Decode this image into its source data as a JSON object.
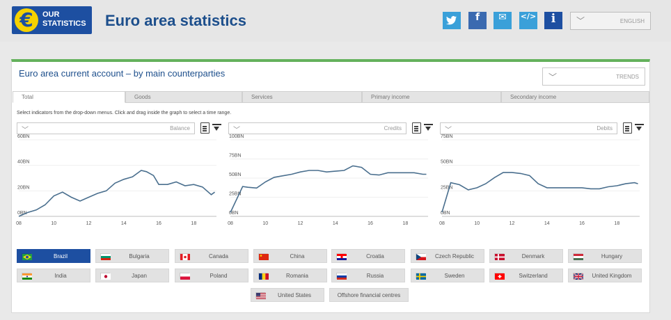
{
  "header": {
    "logo_symbol": "€",
    "logo_line1": "OUR",
    "logo_line2": "STATISTICS",
    "title": "Euro area statistics",
    "social": [
      {
        "icon": "twitter-icon",
        "glyph": "t",
        "color": "#3aa0d9"
      },
      {
        "icon": "facebook-icon",
        "glyph": "f",
        "color": "#3b6ab0"
      },
      {
        "icon": "email-icon",
        "glyph": "✉",
        "color": "#3aa0d9"
      },
      {
        "icon": "embed-code-icon",
        "glyph": "</>",
        "color": "#3aa0d9"
      },
      {
        "icon": "info-icon",
        "glyph": "i",
        "color": "#1d4fa1"
      }
    ],
    "language": "ENGLISH"
  },
  "card": {
    "title": "Euro area current account – by main counterparties",
    "view_select": "TRENDS",
    "tabs": [
      "Total",
      "Goods",
      "Services",
      "Primary income",
      "Secondary income"
    ],
    "active_tab": "Total",
    "hint": "Select indicators from the drop-down menus. Click and drag inside the graph to select a time range."
  },
  "accent_color": "#64b15c",
  "line_color": "#4a6f8e",
  "chart_data": [
    {
      "type": "line",
      "selector": "Balance",
      "y_ticks": [
        "0BN",
        "20BN",
        "40BN",
        "60BN"
      ],
      "ylim": [
        0,
        60
      ],
      "x_ticks": [
        "08",
        "10",
        "12",
        "14",
        "16",
        "18"
      ],
      "xlim": [
        2008,
        2019.3
      ],
      "x": [
        2008,
        2008.5,
        2009,
        2009.5,
        2010,
        2010.5,
        2011,
        2011.5,
        2012,
        2012.5,
        2013,
        2013.5,
        2014,
        2014.5,
        2015,
        2015.3,
        2015.7,
        2016,
        2016.5,
        2017,
        2017.5,
        2018,
        2018.5,
        2019,
        2019.2
      ],
      "y": [
        0,
        3,
        5,
        9,
        16,
        19,
        15,
        12,
        15,
        18,
        20,
        26,
        29,
        31,
        36,
        35,
        32,
        25,
        25,
        27,
        24,
        25,
        23,
        17,
        19
      ]
    },
    {
      "type": "line",
      "selector": "Credits",
      "y_ticks": [
        "0BN",
        "25BN",
        "50BN",
        "75BN",
        "100BN"
      ],
      "ylim": [
        0,
        100
      ],
      "x_ticks": [
        "08",
        "10",
        "12",
        "14",
        "16",
        "18"
      ],
      "xlim": [
        2008,
        2019.3
      ],
      "x": [
        2008,
        2008.7,
        2009,
        2009.5,
        2010,
        2010.5,
        2011,
        2011.5,
        2012,
        2012.5,
        2013,
        2013.5,
        2014,
        2014.5,
        2015,
        2015.5,
        2016,
        2016.5,
        2017,
        2017.5,
        2018,
        2018.5,
        2019,
        2019.2
      ],
      "y": [
        5,
        39,
        38,
        37,
        45,
        51,
        53,
        55,
        58,
        60,
        60,
        58,
        59,
        60,
        66,
        64,
        55,
        54,
        57,
        57,
        57,
        57,
        55,
        55
      ]
    },
    {
      "type": "line",
      "selector": "Debits",
      "y_ticks": [
        "0BN",
        "25BN",
        "50BN",
        "75BN"
      ],
      "ylim": [
        0,
        75
      ],
      "x_ticks": [
        "08",
        "10",
        "12",
        "14",
        "16",
        "18"
      ],
      "xlim": [
        2008,
        2019.3
      ],
      "x": [
        2008,
        2008.5,
        2009,
        2009.5,
        2010,
        2010.5,
        2011,
        2011.5,
        2012,
        2012.5,
        2013,
        2013.5,
        2014,
        2014.5,
        2015,
        2015.5,
        2016,
        2016.5,
        2017,
        2017.5,
        2018,
        2018.5,
        2019,
        2019.2
      ],
      "y": [
        4,
        33,
        31,
        26,
        28,
        32,
        38,
        43,
        43,
        42,
        40,
        32,
        28,
        28,
        28,
        28,
        28,
        27,
        27,
        29,
        30,
        32,
        33,
        32
      ]
    }
  ],
  "countries": [
    {
      "name": "Brazil",
      "flag": "flag-brazil-icon",
      "active": true
    },
    {
      "name": "Bulgaria",
      "flag": "flag-bulgaria-icon"
    },
    {
      "name": "Canada",
      "flag": "flag-canada-icon"
    },
    {
      "name": "China",
      "flag": "flag-china-icon"
    },
    {
      "name": "Croatia",
      "flag": "flag-croatia-icon"
    },
    {
      "name": "Czech Republic",
      "flag": "flag-czech-republic-icon"
    },
    {
      "name": "Denmark",
      "flag": "flag-denmark-icon"
    },
    {
      "name": "Hungary",
      "flag": "flag-hungary-icon"
    },
    {
      "name": "India",
      "flag": "flag-india-icon"
    },
    {
      "name": "Japan",
      "flag": "flag-japan-icon"
    },
    {
      "name": "Poland",
      "flag": "flag-poland-icon"
    },
    {
      "name": "Romania",
      "flag": "flag-romania-icon"
    },
    {
      "name": "Russia",
      "flag": "flag-russia-icon"
    },
    {
      "name": "Sweden",
      "flag": "flag-sweden-icon"
    },
    {
      "name": "Switzerland",
      "flag": "flag-switzerland-icon"
    },
    {
      "name": "United Kingdom",
      "flag": "flag-united-kingdom-icon"
    },
    {
      "name": "United States",
      "flag": "flag-united-states-icon"
    },
    {
      "name": "Offshore financial centres",
      "flag": ""
    }
  ]
}
